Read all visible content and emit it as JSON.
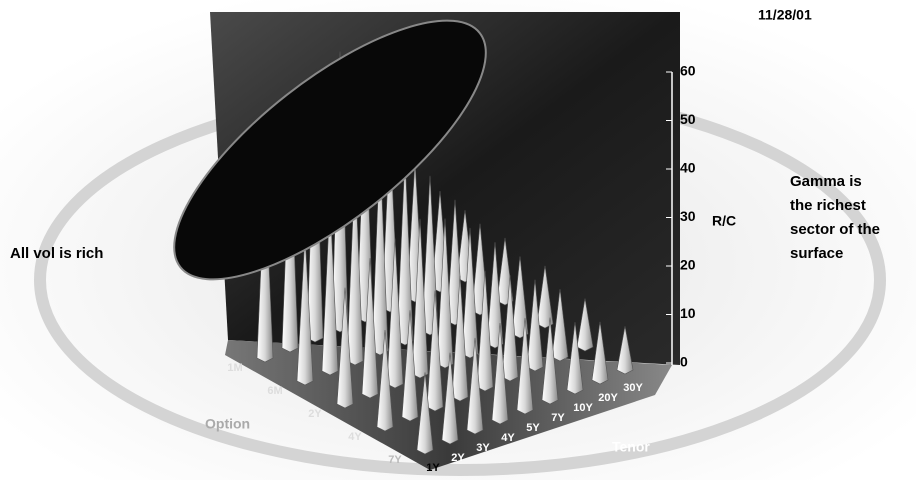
{
  "chart_data": {
    "type": "cone3d",
    "date": "11/28/01",
    "left_note": "All vol is rich",
    "right_note": [
      "Gamma  is",
      "the richest",
      "sector of the",
      "surface"
    ],
    "z_label": "R/C",
    "option_label": "Option",
    "tenor_label": "Tenor",
    "option_categories": [
      "1M",
      "6M",
      "2Y",
      "4Y",
      "7Y"
    ],
    "tenor_categories": [
      "1Y",
      "2Y",
      "3Y",
      "4Y",
      "5Y",
      "7Y",
      "10Y",
      "20Y",
      "30Y"
    ],
    "values": [
      [
        38,
        44,
        50,
        57,
        45,
        36,
        28,
        20,
        14
      ],
      [
        30,
        35,
        40,
        42,
        38,
        32,
        25,
        18,
        13
      ],
      [
        24,
        28,
        30,
        32,
        30,
        26,
        21,
        16,
        12
      ],
      [
        20,
        22,
        24,
        25,
        24,
        21,
        18,
        14,
        10
      ],
      [
        16,
        18,
        19,
        20,
        19,
        17,
        14,
        12,
        9
      ]
    ],
    "color": "#ffffff",
    "zlim": [
      0,
      60
    ],
    "zticks": [
      0,
      10,
      20,
      30,
      40,
      50,
      60
    ]
  }
}
